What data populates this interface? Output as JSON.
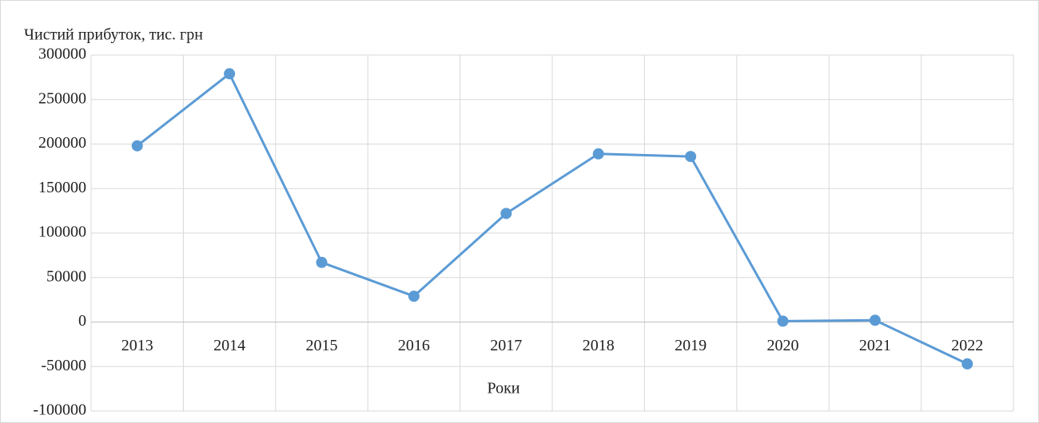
{
  "chart_data": {
    "type": "line",
    "y_axis_title": "Чистий прибуток,  тис. грн",
    "x_axis_title": "Роки",
    "categories": [
      "2013",
      "2014",
      "2015",
      "2016",
      "2017",
      "2018",
      "2019",
      "2020",
      "2021",
      "2022"
    ],
    "values": [
      198000,
      279000,
      67000,
      29000,
      122000,
      189000,
      186000,
      1000,
      2000,
      -47000
    ],
    "color": "#5b9bd5",
    "ylim": [
      -100000,
      300000
    ],
    "yticks": [
      -100000,
      -50000,
      0,
      50000,
      100000,
      150000,
      200000,
      250000,
      300000
    ],
    "grid": true
  }
}
